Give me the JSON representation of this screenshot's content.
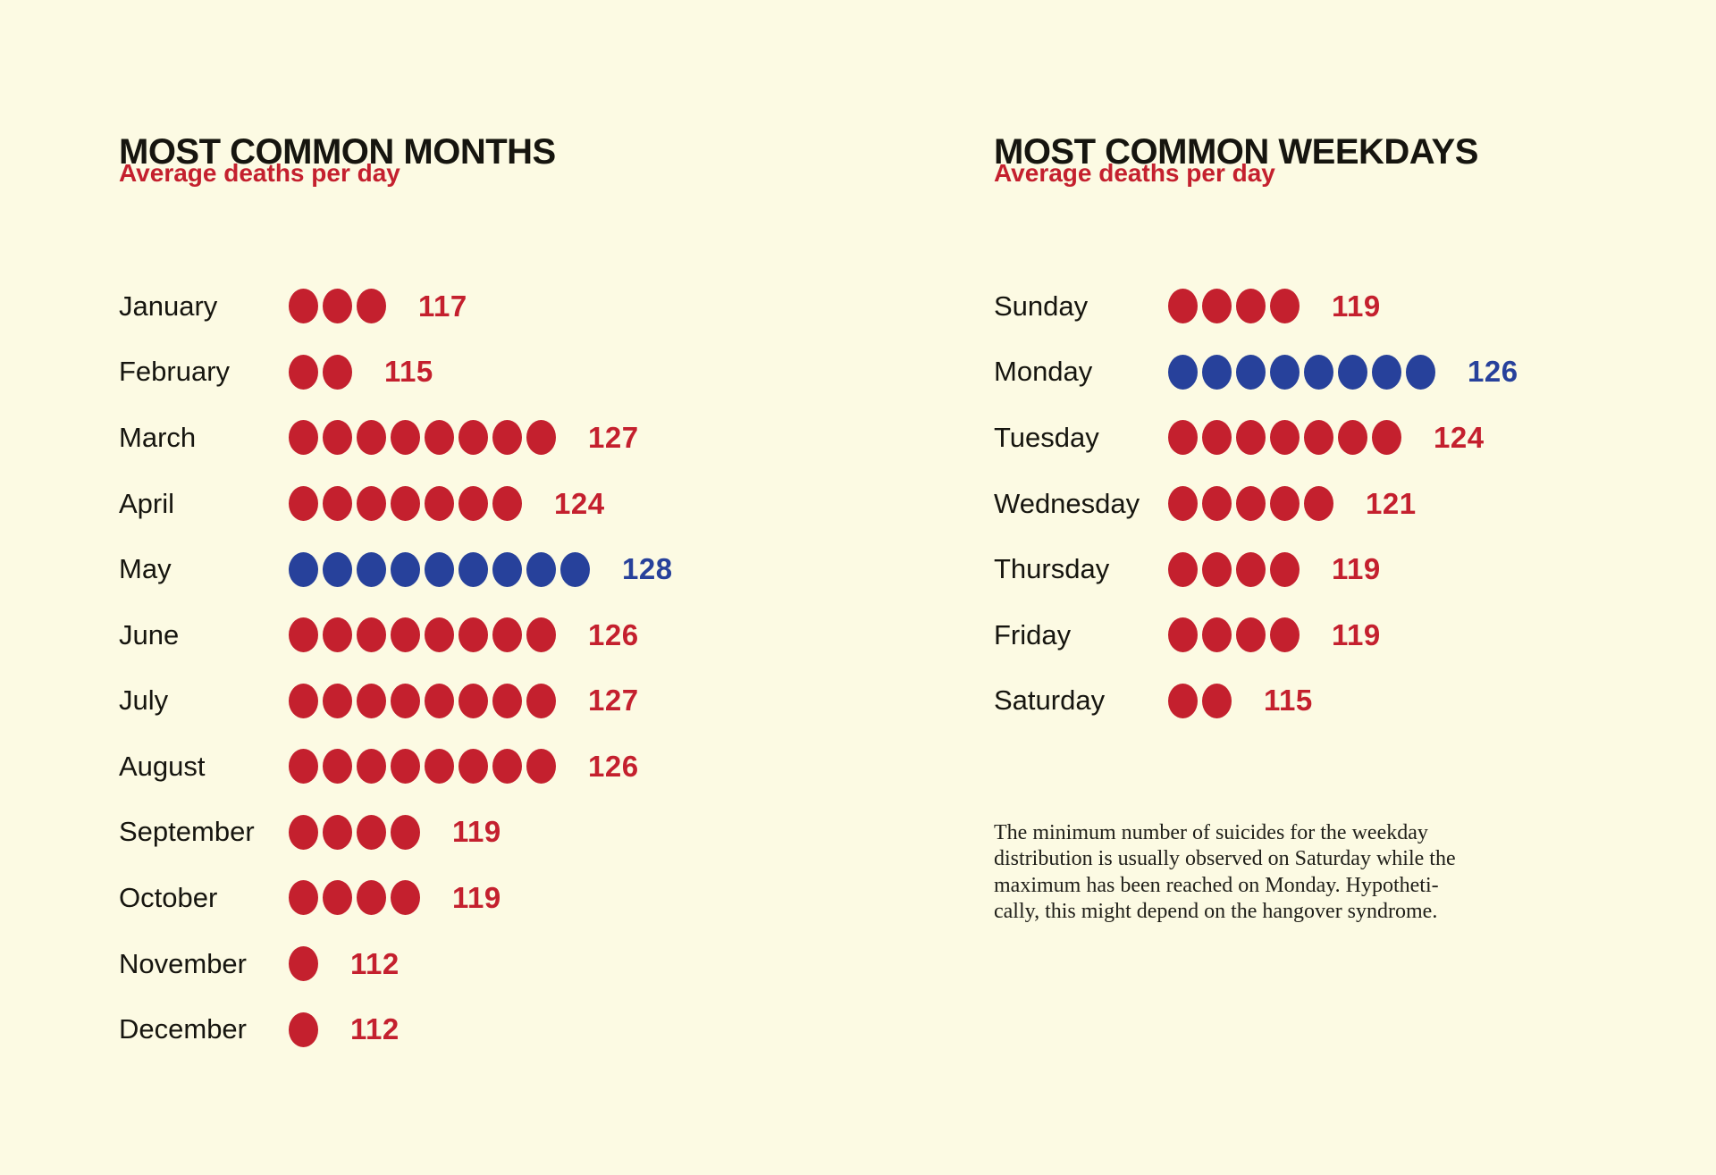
{
  "page": {
    "background": "#FCFAE3"
  },
  "colors": {
    "red": "#C4202E",
    "blue": "#27419B",
    "ink": "#16150F"
  },
  "chart_data": [
    {
      "type": "pictogram-bar",
      "title": "MOST COMMON MONTHS",
      "subtitle": "Average deaths per day",
      "categories": [
        "January",
        "February",
        "March",
        "April",
        "May",
        "June",
        "July",
        "August",
        "September",
        "October",
        "November",
        "December"
      ],
      "values": [
        117,
        115,
        127,
        124,
        128,
        126,
        127,
        126,
        119,
        119,
        112,
        112
      ],
      "dot_counts": [
        3,
        2,
        8,
        7,
        9,
        8,
        8,
        8,
        4,
        4,
        1,
        1
      ],
      "dot_colors": [
        "red",
        "red",
        "red",
        "red",
        "blue",
        "red",
        "red",
        "red",
        "red",
        "red",
        "red",
        "red"
      ],
      "highlight_category": "May",
      "legend_position": "none",
      "grid": false
    },
    {
      "type": "pictogram-bar",
      "title": "MOST COMMON WEEKDAYS",
      "subtitle": "Average deaths per day",
      "categories": [
        "Sunday",
        "Monday",
        "Tuesday",
        "Wednesday",
        "Thursday",
        "Friday",
        "Saturday"
      ],
      "values": [
        119,
        126,
        124,
        121,
        119,
        119,
        115
      ],
      "dot_counts": [
        4,
        8,
        7,
        5,
        4,
        4,
        2
      ],
      "dot_colors": [
        "red",
        "blue",
        "red",
        "red",
        "red",
        "red",
        "red"
      ],
      "highlight_category": "Monday",
      "legend_position": "none",
      "grid": false,
      "note_lines": [
        "The minimum number of suicides for the weekday",
        "distribution is usually observed on Saturday while the",
        "maximum has been reached on Monday. Hypotheti-",
        "cally, this might depend on the hangover syndrome."
      ]
    }
  ]
}
